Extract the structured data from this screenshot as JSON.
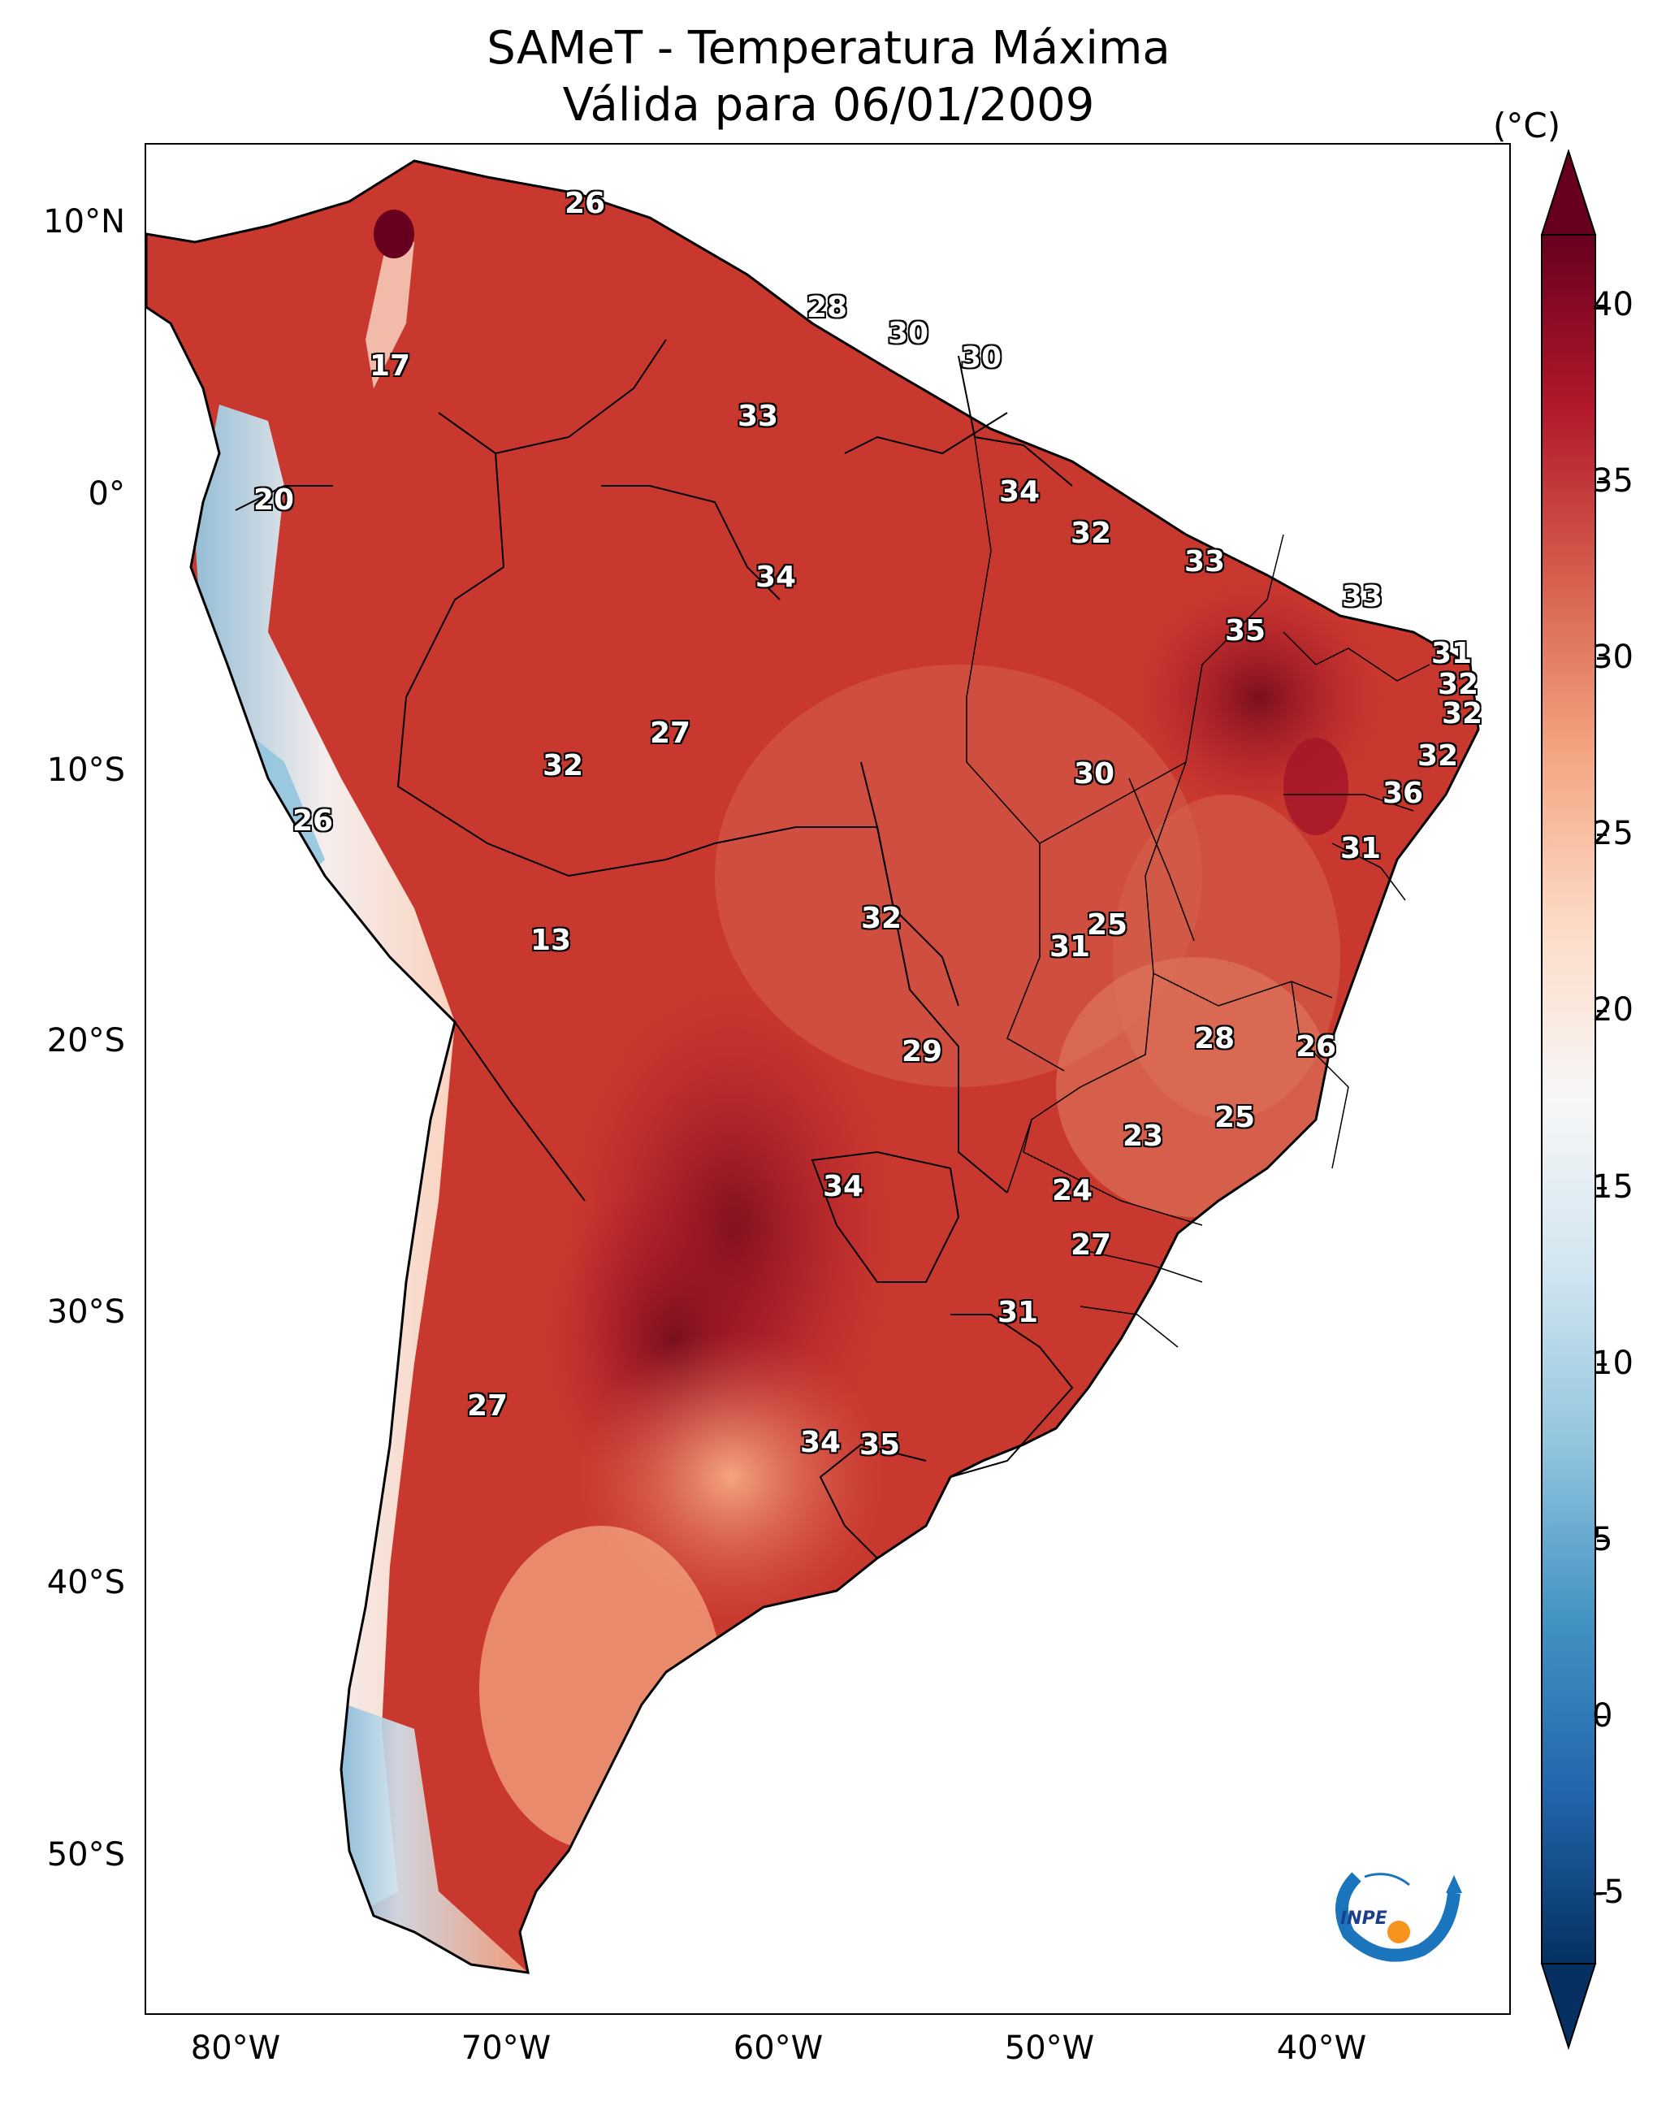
{
  "title_line1": "SAMeT - Temperatura Máxima",
  "title_line2": "Válida para 06/01/2009",
  "colorbar": {
    "unit": "(°C)",
    "min": -7,
    "max": 42,
    "ticks": [
      "-5",
      "0",
      "5",
      "10",
      "15",
      "20",
      "25",
      "30",
      "35",
      "40"
    ],
    "colors": [
      "#053061",
      "#2166ac",
      "#4393c3",
      "#92c5de",
      "#d1e5f0",
      "#f7f7f7",
      "#fddbc7",
      "#f4a582",
      "#d6604d",
      "#b2182b",
      "#67001f"
    ]
  },
  "axes": {
    "y_labels": [
      "10°N",
      "0°",
      "10°S",
      "20°S",
      "30°S",
      "40°S",
      "50°S"
    ],
    "x_labels": [
      "80°W",
      "70°W",
      "60°W",
      "50°W",
      "40°W"
    ]
  },
  "contour_labels": [
    "26",
    "17",
    "28",
    "30",
    "30",
    "33",
    "20",
    "34",
    "32",
    "33",
    "34",
    "33",
    "35",
    "31",
    "32",
    "32",
    "27",
    "32",
    "32",
    "30",
    "36",
    "26",
    "31",
    "13",
    "32",
    "25",
    "31",
    "28",
    "26",
    "29",
    "25",
    "23",
    "34",
    "24",
    "27",
    "31",
    "27",
    "34",
    "35"
  ],
  "logo_text": "INPE"
}
